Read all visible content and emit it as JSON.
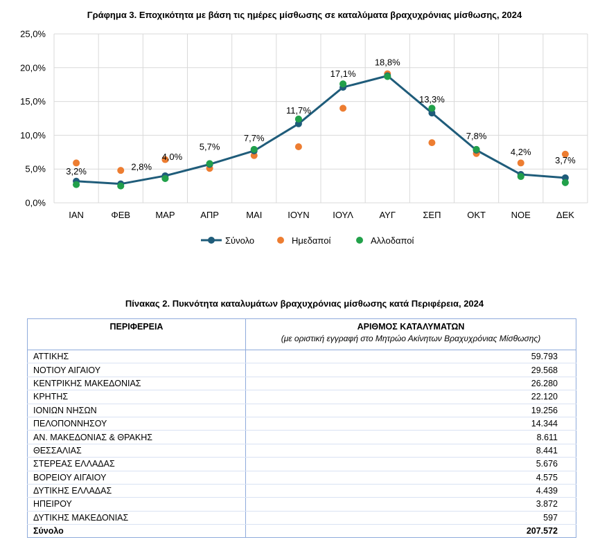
{
  "chart_title": "Γράφημα 3. Εποχικότητα με βάση τις ημέρες μίσθωσης σε καταλύματα βραχυχρόνιας μίσθωσης, 2024",
  "chart_data": {
    "type": "line",
    "categories": [
      "ΙΑΝ",
      "ΦΕΒ",
      "ΜΑΡ",
      "ΑΠΡ",
      "ΜΑΙ",
      "ΙΟΥΝ",
      "ΙΟΥΛ",
      "ΑΥΓ",
      "ΣΕΠ",
      "ΟΚΤ",
      "ΝΟΕ",
      "ΔΕΚ"
    ],
    "ylim": [
      0,
      25
    ],
    "yticks": [
      "0,0%",
      "5,0%",
      "10,0%",
      "15,0%",
      "20,0%",
      "25,0%"
    ],
    "grid": true,
    "legend_position": "bottom",
    "series": [
      {
        "name": "Σύνολο",
        "style": "line",
        "color": "#1f5c7a",
        "values": [
          3.2,
          2.8,
          4.0,
          5.7,
          7.7,
          11.7,
          17.1,
          18.8,
          13.3,
          7.8,
          4.2,
          3.7
        ],
        "labels": [
          "3,2%",
          "2,8%",
          "4,0%",
          "5,7%",
          "7,7%",
          "11,7%",
          "17,1%",
          "18,8%",
          "13,3%",
          "7,8%",
          "4,2%",
          "3,7%"
        ]
      },
      {
        "name": "Ημεδαποί",
        "style": "marker",
        "color": "#ed7d31",
        "values": [
          5.9,
          4.8,
          6.4,
          5.1,
          7.0,
          8.3,
          14.0,
          19.1,
          8.9,
          7.3,
          5.9,
          7.2
        ]
      },
      {
        "name": "Αλλοδαποί",
        "style": "marker",
        "color": "#22a14a",
        "values": [
          2.7,
          2.5,
          3.6,
          5.8,
          7.9,
          12.4,
          17.6,
          18.7,
          14.0,
          7.9,
          3.9,
          3.0
        ]
      }
    ]
  },
  "table": {
    "title": "Πίνακας 2. Πυκνότητα καταλυμάτων βραχυχρόνιας μίσθωσης κατά Περιφέρεια, 2024",
    "col1_header": "ΠΕΡΙΦΕΡΕΙΑ",
    "col2_header": "ΑΡΙΘΜΟΣ ΚΑΤΑΛΥΜΑΤΩΝ",
    "col2_subheader": "(με οριστική εγγραφή στο Μητρώο Ακίνητων Βραχυχρόνιας Μίσθωσης)",
    "rows": [
      {
        "region": "ΑΤΤΙΚΗΣ",
        "count": "59.793"
      },
      {
        "region": "ΝΟΤΙΟΥ ΑΙΓΑΙΟΥ",
        "count": "29.568"
      },
      {
        "region": "ΚΕΝΤΡΙΚΗΣ ΜΑΚΕΔΟΝΙΑΣ",
        "count": "26.280"
      },
      {
        "region": "ΚΡΗΤΗΣ",
        "count": "22.120"
      },
      {
        "region": "ΙΟΝΙΩΝ ΝΗΣΩΝ",
        "count": "19.256"
      },
      {
        "region": "ΠΕΛΟΠΟΝΝΗΣΟΥ",
        "count": "14.344"
      },
      {
        "region": "ΑΝ. ΜΑΚΕΔΟΝΙΑΣ & ΘΡΑΚΗΣ",
        "count": "8.611"
      },
      {
        "region": "ΘΕΣΣΑΛΙΑΣ",
        "count": "8.441"
      },
      {
        "region": "ΣΤΕΡΕΑΣ ΕΛΛΑΔΑΣ",
        "count": "5.676"
      },
      {
        "region": "ΒΟΡΕΙΟΥ ΑΙΓΑΙΟΥ",
        "count": "4.575"
      },
      {
        "region": "ΔΥΤΙΚΗΣ ΕΛΛΑΔΑΣ",
        "count": "4.439"
      },
      {
        "region": "ΗΠΕΙΡΟΥ",
        "count": "3.872"
      },
      {
        "region": "ΔΥΤΙΚΗΣ ΜΑΚΕΔΟΝΙΑΣ",
        "count": "597"
      }
    ],
    "total": {
      "label": "Σύνολο",
      "count": "207.572"
    }
  }
}
